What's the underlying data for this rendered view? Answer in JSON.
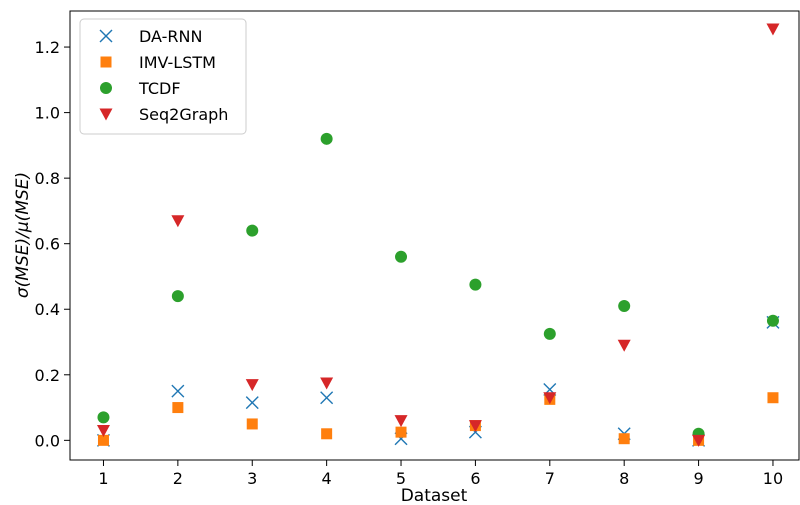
{
  "chart_data": {
    "type": "scatter",
    "xlabel": "Dataset",
    "ylabel": "σ(MSE)/μ(MSE)",
    "x": [
      1,
      2,
      3,
      4,
      5,
      6,
      7,
      8,
      9,
      10
    ],
    "xticks": [
      1,
      2,
      3,
      4,
      5,
      6,
      7,
      8,
      9,
      10
    ],
    "yticks": [
      0.0,
      0.2,
      0.4,
      0.6,
      0.8,
      1.0,
      1.2
    ],
    "ylim": [
      -0.06,
      1.31
    ],
    "xlim": [
      0.55,
      10.35
    ],
    "grid": false,
    "legend_position": "top-left",
    "series": [
      {
        "name": "DA-RNN",
        "marker": "x",
        "color": "#1f77b4",
        "values": [
          0.0,
          0.15,
          0.115,
          0.13,
          0.005,
          0.025,
          0.155,
          0.02,
          0.0,
          0.36
        ]
      },
      {
        "name": "IMV-LSTM",
        "marker": "square",
        "color": "#ff7f0e",
        "values": [
          0.0,
          0.1,
          0.05,
          0.02,
          0.025,
          0.045,
          0.125,
          0.005,
          0.0,
          0.13
        ]
      },
      {
        "name": "TCDF",
        "marker": "circle",
        "color": "#2ca02c",
        "values": [
          0.07,
          0.44,
          0.64,
          0.92,
          0.56,
          0.475,
          0.325,
          0.41,
          0.02,
          0.365
        ]
      },
      {
        "name": "Seq2Graph",
        "marker": "triangle-down",
        "color": "#d62728",
        "values": [
          0.03,
          0.67,
          0.17,
          0.175,
          0.06,
          0.045,
          0.13,
          0.29,
          0.0,
          1.255
        ]
      }
    ]
  }
}
